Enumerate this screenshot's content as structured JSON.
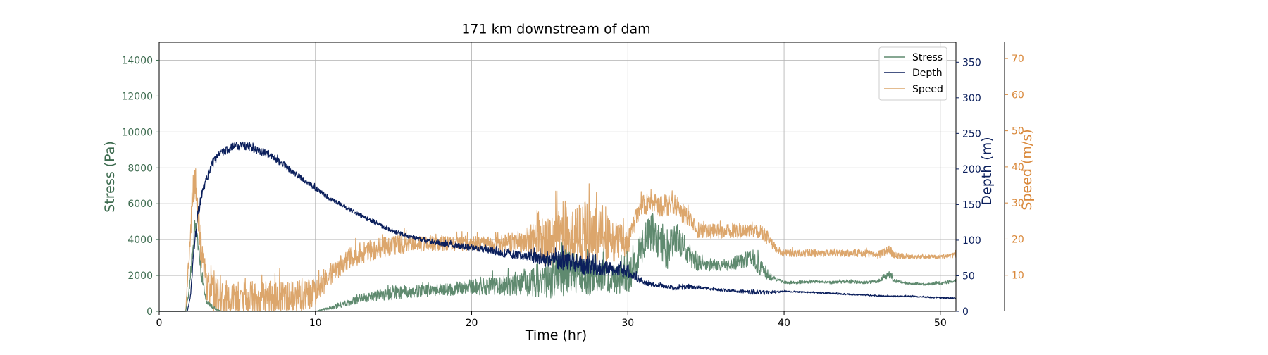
{
  "chart_data": {
    "type": "line",
    "title": "171 km downstream of dam",
    "xlabel": "Time (hr)",
    "xlim": [
      0,
      51
    ],
    "xticks": [
      0,
      10,
      20,
      30,
      40,
      50
    ],
    "grid": true,
    "legend_position": "top-right",
    "axes": {
      "stress": {
        "label": "Stress (Pa)",
        "side": "left",
        "color": "#3d6b4f",
        "ylim": [
          0,
          15000
        ],
        "ticks": [
          0,
          2000,
          4000,
          6000,
          8000,
          10000,
          12000,
          14000
        ]
      },
      "depth": {
        "label": "Depth (m)",
        "side": "right",
        "color": "#0b1f5c",
        "ylim": [
          0,
          378
        ],
        "ticks": [
          0,
          50,
          100,
          150,
          200,
          250,
          300,
          350
        ]
      },
      "speed": {
        "label": "Speed (m/s)",
        "side": "right-outer",
        "color": "#d9883a",
        "ylim": [
          0,
          74.5
        ],
        "ticks": [
          10,
          20,
          30,
          40,
          50,
          60,
          70
        ]
      }
    },
    "series": [
      {
        "name": "Stress",
        "axis": "stress",
        "color": "#5f8a6f",
        "x": [
          0,
          1.7,
          1.9,
          2.1,
          2.3,
          2.5,
          2.7,
          3.0,
          3.5,
          4.0,
          5,
          6,
          7,
          8,
          9,
          10,
          11,
          12,
          13,
          14,
          15,
          16,
          17,
          18,
          19,
          20,
          21,
          22,
          23,
          24,
          25,
          26,
          27,
          28,
          29,
          30,
          30.5,
          31,
          31.5,
          32,
          32.5,
          33,
          33.5,
          34,
          34.5,
          35,
          36,
          37,
          38,
          38.5,
          39,
          39.5,
          40,
          41,
          42,
          43,
          44,
          45,
          46,
          46.7,
          47,
          48,
          49,
          50,
          51
        ],
        "values": [
          0,
          0,
          1000,
          3000,
          4800,
          3500,
          2000,
          600,
          150,
          0,
          0,
          0,
          0,
          0,
          0,
          0,
          200,
          450,
          700,
          850,
          1000,
          1050,
          1100,
          1150,
          1200,
          1300,
          1350,
          1400,
          1500,
          1600,
          1700,
          2000,
          1900,
          1800,
          1750,
          1800,
          2600,
          3600,
          4400,
          3800,
          3200,
          4100,
          3600,
          3000,
          2700,
          2500,
          2500,
          2700,
          2900,
          2400,
          2000,
          1800,
          1600,
          1600,
          1650,
          1600,
          1650,
          1600,
          1650,
          2100,
          1700,
          1550,
          1500,
          1550,
          1700
        ],
        "noise": [
          0,
          0,
          200,
          400,
          500,
          400,
          300,
          150,
          80,
          0,
          0,
          0,
          0,
          0,
          0,
          0,
          120,
          180,
          250,
          300,
          400,
          350,
          350,
          350,
          400,
          450,
          500,
          550,
          700,
          900,
          1100,
          1300,
          1200,
          1000,
          900,
          900,
          900,
          1000,
          1100,
          1000,
          1000,
          900,
          800,
          600,
          500,
          300,
          300,
          400,
          500,
          500,
          300,
          120,
          80,
          80,
          80,
          80,
          80,
          80,
          80,
          250,
          120,
          60,
          60,
          80,
          100
        ]
      },
      {
        "name": "Depth",
        "axis": "depth",
        "color": "#0b1f5c",
        "x": [
          0,
          1.8,
          2.0,
          2.2,
          2.5,
          3.0,
          3.5,
          4.0,
          4.5,
          5.0,
          5.5,
          6.0,
          7,
          8,
          9,
          10,
          11,
          12,
          13,
          14,
          15,
          16,
          17,
          18,
          19,
          20,
          21,
          22,
          23,
          24,
          25,
          26,
          27,
          28,
          29,
          30,
          31,
          32,
          33,
          34,
          35,
          36,
          37,
          38,
          39,
          40,
          41,
          42,
          43,
          44,
          45,
          46,
          47,
          48,
          49,
          50,
          51
        ],
        "values": [
          0,
          0,
          20,
          80,
          140,
          185,
          210,
          222,
          228,
          232,
          232,
          228,
          220,
          205,
          188,
          172,
          157,
          145,
          133,
          122,
          112,
          105,
          99,
          95,
          92,
          89,
          86,
          82,
          78,
          75,
          72,
          68,
          64,
          61,
          58,
          55,
          40,
          36,
          32,
          34,
          32,
          30,
          28,
          26,
          26,
          28,
          27,
          26,
          25,
          24,
          23,
          22,
          21,
          21,
          20,
          19,
          18
        ],
        "noise": [
          0,
          0,
          3,
          6,
          8,
          6,
          6,
          6,
          6,
          6,
          6,
          6,
          5,
          5,
          4,
          4,
          3,
          3,
          3,
          3,
          3,
          3,
          3,
          3,
          4,
          4,
          5,
          6,
          6,
          8,
          12,
          14,
          14,
          12,
          10,
          8,
          3,
          3,
          3,
          3,
          2,
          2,
          2,
          3,
          3,
          1,
          1,
          1,
          1,
          1,
          1,
          1,
          1,
          1,
          1,
          1,
          1
        ]
      },
      {
        "name": "Speed",
        "axis": "speed",
        "color": "#dca66c",
        "x": [
          0,
          1.7,
          1.9,
          2.1,
          2.3,
          2.5,
          2.7,
          3.0,
          3.5,
          4.0,
          5,
          6,
          7,
          8,
          9,
          10,
          11,
          12,
          13,
          14,
          15,
          16,
          17,
          18,
          19,
          20,
          21,
          22,
          23,
          24,
          25,
          26,
          27,
          28,
          29,
          30,
          30.5,
          31,
          31.5,
          32,
          32.5,
          33,
          33.5,
          34,
          34.5,
          35,
          36,
          37,
          38,
          38.5,
          39,
          39.5,
          40,
          41,
          42,
          43,
          44,
          45,
          46,
          46.7,
          47,
          48,
          49,
          50,
          51
        ],
        "values": [
          0,
          0,
          15,
          30,
          35,
          25,
          15,
          7,
          4,
          3,
          3,
          3,
          3,
          3,
          3,
          5,
          10,
          14,
          16,
          17,
          18,
          18.5,
          18.5,
          18.5,
          18.5,
          18.5,
          18.5,
          18.5,
          19,
          19,
          19,
          20,
          20,
          20,
          19,
          19,
          25,
          29,
          30,
          29,
          29,
          29,
          27,
          25,
          22,
          22,
          22,
          22,
          22,
          22,
          20,
          17,
          16,
          16,
          16,
          16,
          16,
          16,
          15.5,
          17,
          15.5,
          15,
          15,
          15,
          15.5
        ],
        "noise": [
          0,
          0,
          3,
          5,
          6,
          6,
          5,
          4,
          5,
          5,
          5,
          5,
          5,
          5,
          5,
          4,
          3,
          3,
          3,
          3,
          3,
          2.5,
          2,
          2,
          2,
          2,
          2,
          2.5,
          3,
          5,
          8,
          10,
          10,
          9,
          6,
          4,
          3,
          3,
          3,
          3,
          3,
          3,
          3,
          2,
          2,
          2,
          2,
          2,
          2,
          2,
          2,
          1,
          1,
          1,
          1,
          1,
          1,
          1,
          1,
          1.5,
          1,
          0.6,
          0.6,
          0.6,
          0.8
        ]
      }
    ]
  }
}
